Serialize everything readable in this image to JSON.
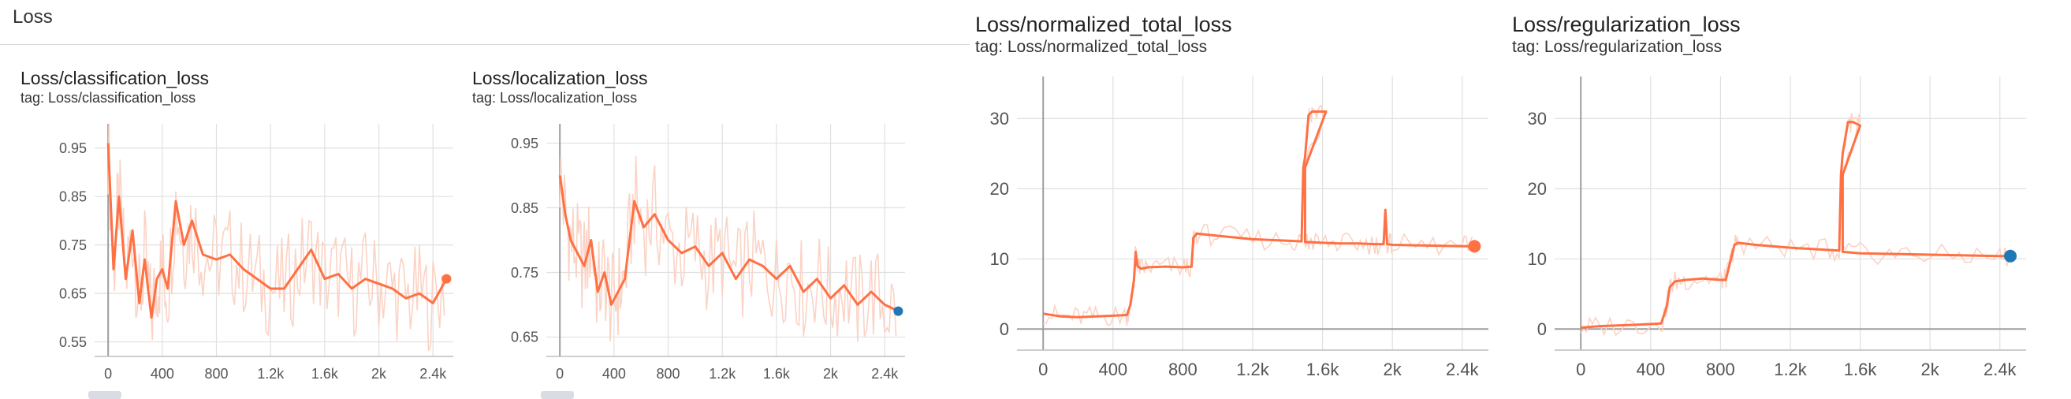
{
  "section": {
    "title": "Loss"
  },
  "colors": {
    "smoothed": "#ff7043",
    "raw": "#fbd3c5",
    "last_point_orange": "#ff7043",
    "last_point_blue": "#1f77b4",
    "grid": "#e0e0e0"
  },
  "chart_data": [
    {
      "type": "line",
      "title": "Loss/classification_loss",
      "subtitle": "tag: Loss/classification_loss",
      "xlabel": "",
      "ylabel": "",
      "xlim": [
        -100,
        2550
      ],
      "ylim": [
        0.52,
        1.0
      ],
      "xticks": [
        0,
        400,
        800,
        1200,
        1600,
        2000,
        2400
      ],
      "xtick_labels": [
        "0",
        "400",
        "800",
        "1.2k",
        "1.6k",
        "2k",
        "2.4k"
      ],
      "yticks": [
        0.55,
        0.65,
        0.75,
        0.85,
        0.95
      ],
      "ytick_labels": [
        "0.55",
        "0.65",
        "0.75",
        "0.85",
        "0.95"
      ],
      "grid": true,
      "last_point_color": "orange",
      "series": [
        {
          "x": [
            0,
            40,
            80,
            130,
            180,
            230,
            270,
            320,
            360,
            400,
            440,
            500,
            560,
            620,
            700,
            800,
            900,
            1000,
            1100,
            1200,
            1300,
            1400,
            1500,
            1600,
            1700,
            1800,
            1900,
            2000,
            2100,
            2200,
            2300,
            2400,
            2500
          ],
          "y": [
            0.96,
            0.7,
            0.85,
            0.68,
            0.78,
            0.63,
            0.72,
            0.6,
            0.68,
            0.7,
            0.66,
            0.84,
            0.75,
            0.8,
            0.73,
            0.72,
            0.73,
            0.7,
            0.68,
            0.66,
            0.66,
            0.7,
            0.74,
            0.68,
            0.69,
            0.66,
            0.68,
            0.67,
            0.66,
            0.64,
            0.65,
            0.63,
            0.68
          ]
        }
      ]
    },
    {
      "type": "line",
      "title": "Loss/localization_loss",
      "subtitle": "tag: Loss/localization_loss",
      "xlabel": "",
      "ylabel": "",
      "xlim": [
        -100,
        2550
      ],
      "ylim": [
        0.62,
        0.98
      ],
      "xticks": [
        0,
        400,
        800,
        1200,
        1600,
        2000,
        2400
      ],
      "xtick_labels": [
        "0",
        "400",
        "800",
        "1.2k",
        "1.6k",
        "2k",
        "2.4k"
      ],
      "yticks": [
        0.65,
        0.75,
        0.85,
        0.95
      ],
      "ytick_labels": [
        "0.65",
        "0.75",
        "0.85",
        "0.95"
      ],
      "grid": true,
      "last_point_color": "blue",
      "series": [
        {
          "x": [
            0,
            40,
            80,
            130,
            180,
            230,
            280,
            330,
            380,
            430,
            480,
            550,
            620,
            700,
            800,
            900,
            1000,
            1100,
            1200,
            1300,
            1400,
            1500,
            1600,
            1700,
            1800,
            1900,
            2000,
            2100,
            2200,
            2300,
            2400,
            2500
          ],
          "y": [
            0.9,
            0.84,
            0.8,
            0.78,
            0.76,
            0.8,
            0.72,
            0.75,
            0.7,
            0.72,
            0.74,
            0.86,
            0.82,
            0.84,
            0.8,
            0.78,
            0.79,
            0.76,
            0.78,
            0.74,
            0.77,
            0.76,
            0.74,
            0.76,
            0.72,
            0.74,
            0.71,
            0.73,
            0.7,
            0.72,
            0.7,
            0.69
          ]
        }
      ]
    },
    {
      "type": "line",
      "title": "Loss/normalized_total_loss",
      "subtitle": "tag: Loss/normalized_total_loss",
      "xlabel": "",
      "ylabel": "",
      "xlim": [
        -150,
        2550
      ],
      "ylim": [
        -3,
        36
      ],
      "xticks": [
        0,
        400,
        800,
        1200,
        1600,
        2000,
        2400
      ],
      "xtick_labels": [
        "0",
        "400",
        "800",
        "1.2k",
        "1.6k",
        "2k",
        "2.4k"
      ],
      "yticks": [
        0,
        10,
        20,
        30
      ],
      "ytick_labels": [
        "0",
        "10",
        "20",
        "30"
      ],
      "grid": true,
      "last_point_color": "orange",
      "series": [
        {
          "x": [
            0,
            100,
            200,
            300,
            400,
            480,
            500,
            520,
            530,
            540,
            560,
            600,
            700,
            800,
            850,
            860,
            880,
            1000,
            1200,
            1400,
            1480,
            1490,
            1500,
            1520,
            1540,
            1620,
            1500,
            1500,
            1520,
            1600,
            1700,
            1800,
            1900,
            1950,
            1960,
            1970,
            2000,
            2200,
            2400,
            2470
          ],
          "y": [
            2.2,
            1.8,
            1.7,
            1.8,
            1.9,
            2.0,
            3.5,
            7.0,
            11.0,
            9.0,
            8.6,
            8.8,
            8.9,
            8.8,
            8.9,
            13.0,
            13.6,
            13.3,
            12.8,
            12.6,
            12.5,
            23.0,
            24.5,
            30.5,
            31.0,
            31.0,
            23.0,
            12.4,
            12.4,
            12.3,
            12.2,
            12.2,
            12.1,
            12.1,
            17.0,
            12.1,
            12.0,
            11.9,
            11.8,
            11.8
          ]
        }
      ]
    },
    {
      "type": "line",
      "title": "Loss/regularization_loss",
      "subtitle": "tag: Loss/regularization_loss",
      "xlabel": "",
      "ylabel": "",
      "xlim": [
        -150,
        2550
      ],
      "ylim": [
        -3,
        36
      ],
      "xticks": [
        0,
        400,
        800,
        1200,
        1600,
        2000,
        2400
      ],
      "xtick_labels": [
        "0",
        "400",
        "800",
        "1.2k",
        "1.6k",
        "2k",
        "2.4k"
      ],
      "yticks": [
        0,
        10,
        20,
        30
      ],
      "ytick_labels": [
        "0",
        "10",
        "20",
        "30"
      ],
      "grid": true,
      "last_point_color": "blue",
      "series": [
        {
          "x": [
            0,
            100,
            300,
            460,
            490,
            510,
            540,
            600,
            700,
            800,
            830,
            850,
            880,
            900,
            1000,
            1200,
            1400,
            1480,
            1490,
            1500,
            1530,
            1560,
            1600,
            1500,
            1500,
            1600,
            1800,
            2000,
            2200,
            2400,
            2460
          ],
          "y": [
            0.2,
            0.4,
            0.6,
            0.8,
            3.0,
            6.0,
            6.8,
            7.0,
            7.2,
            7.0,
            7.0,
            9.0,
            12.0,
            12.3,
            12.0,
            11.6,
            11.3,
            11.2,
            22.0,
            25.0,
            29.5,
            29.5,
            29.0,
            22.0,
            11.0,
            10.8,
            10.7,
            10.6,
            10.5,
            10.4,
            10.4
          ]
        }
      ]
    }
  ]
}
